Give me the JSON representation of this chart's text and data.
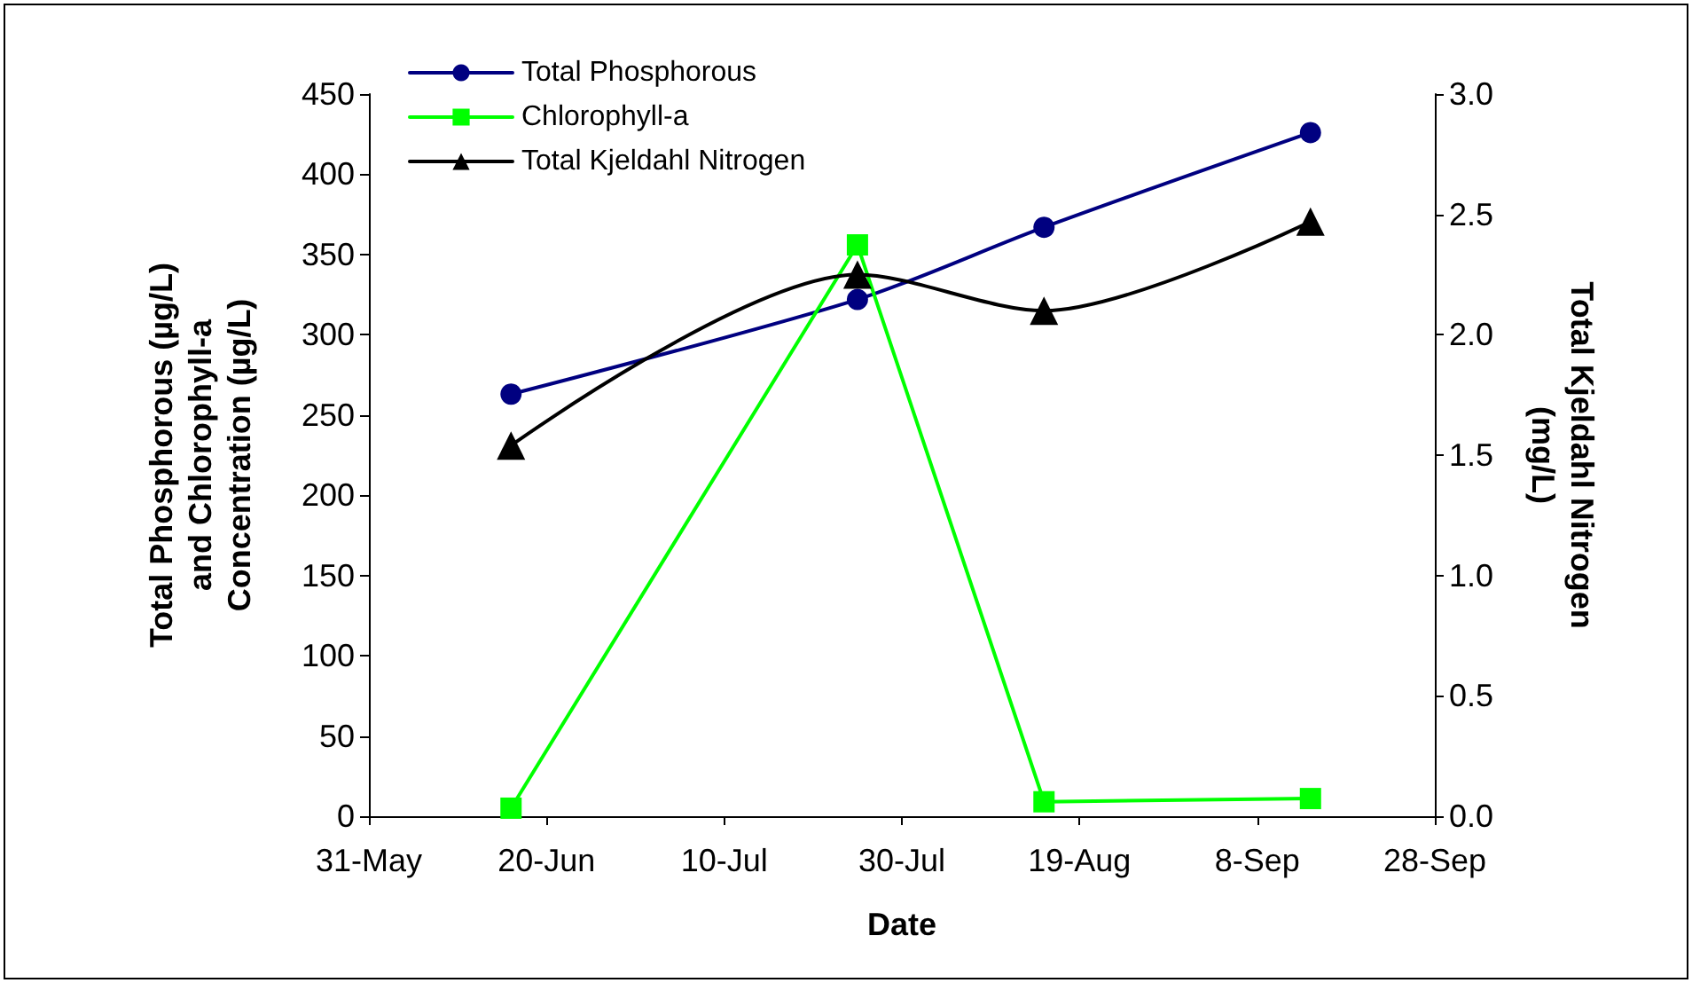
{
  "chart_data": {
    "type": "line",
    "xlabel": "Date",
    "ylabel": "Total Phosphorous (µg/L)\nand Chlorophyll-a\nConcentration (µg/L)",
    "y2label": "Total Kjeldahl Nitrogen\n(mg/L)",
    "x": [
      "--06-16",
      "--07-25",
      "--08-15",
      "--09-14"
    ],
    "series": [
      {
        "name": "Total Phosphorous",
        "color": "#000080",
        "marker": "circle",
        "values": [
          263,
          322,
          367,
          426
        ]
      },
      {
        "name": "Chlorophyll-a",
        "color": "#00ff00",
        "marker": "square",
        "values": [
          5,
          356,
          9,
          11
        ]
      },
      {
        "name": "Total Kjeldahl Nitrogen",
        "color": "#000000",
        "marker": "triangle",
        "axis": "y2",
        "values": [
          1.54,
          2.25,
          2.1,
          2.47
        ]
      }
    ],
    "xlim": [
      "--05-31",
      "--09-28"
    ],
    "xticks": [
      {
        "value": "--05-31",
        "label": "31-May"
      },
      {
        "value": "--06-20",
        "label": "20-Jun"
      },
      {
        "value": "--07-10",
        "label": "10-Jul"
      },
      {
        "value": "--07-30",
        "label": "30-Jul"
      },
      {
        "value": "--08-19",
        "label": "19-Aug"
      },
      {
        "value": "--09-08",
        "label": "8-Sep"
      },
      {
        "value": "--09-28",
        "label": "28-Sep"
      }
    ],
    "ylim": [
      0,
      450
    ],
    "yticks": [
      0,
      50,
      100,
      150,
      200,
      250,
      300,
      350,
      400,
      450
    ],
    "y2lim": [
      0,
      3
    ],
    "y2ticks": [
      {
        "value": 0,
        "label": "0.0"
      },
      {
        "value": 0.5,
        "label": "0.5"
      },
      {
        "value": 1,
        "label": "1.0"
      },
      {
        "value": 1.5,
        "label": "1.5"
      },
      {
        "value": 2,
        "label": "2.0"
      },
      {
        "value": 2.5,
        "label": "2.5"
      },
      {
        "value": 3,
        "label": "3.0"
      }
    ],
    "grid": false,
    "legend": "top left",
    "line_style": "solid"
  }
}
